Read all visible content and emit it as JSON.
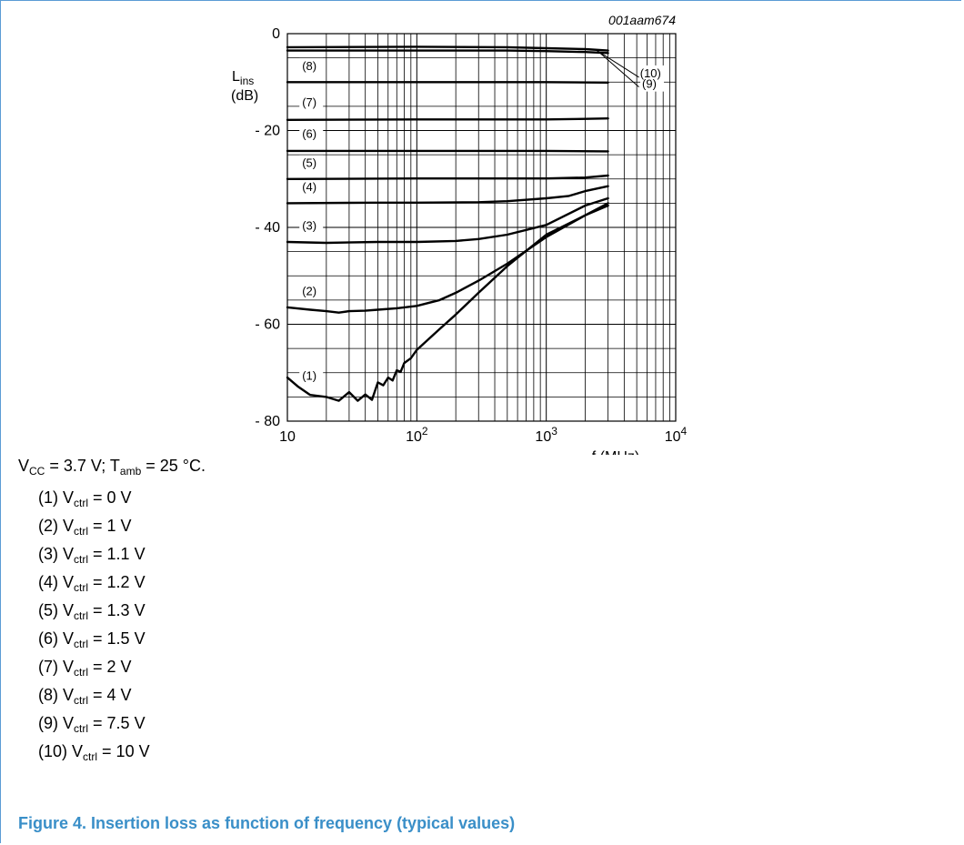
{
  "chart_data": {
    "type": "line",
    "figure_code": "001aam674",
    "ylabel_main": "L",
    "ylabel_sub": "ins",
    "ylabel_unit": "(dB)",
    "xlabel": "f (MHz)",
    "xscale": "log",
    "xlim": [
      10,
      10000
    ],
    "ylim": [
      -80,
      0
    ],
    "x_ticks": [
      {
        "value": 10,
        "base": "10",
        "exp": ""
      },
      {
        "value": 100,
        "base": "10",
        "exp": "2"
      },
      {
        "value": 1000,
        "base": "10",
        "exp": "3"
      },
      {
        "value": 10000,
        "base": "10",
        "exp": "4"
      }
    ],
    "y_ticks": [
      {
        "value": 0,
        "label": "0"
      },
      {
        "value": -20,
        "label": "- 20"
      },
      {
        "value": -40,
        "label": "- 40"
      },
      {
        "value": -60,
        "label": "- 60"
      },
      {
        "value": -80,
        "label": "- 80"
      }
    ],
    "grid": true,
    "series": [
      {
        "name": "(1)",
        "x": [
          10,
          12,
          15,
          20,
          25,
          30,
          35,
          40,
          45,
          50,
          55,
          60,
          65,
          70,
          75,
          80,
          90,
          100,
          150,
          200,
          300,
          500,
          1000,
          2000,
          3000
        ],
        "y": [
          -71,
          -72.8,
          -74.6,
          -75,
          -75.8,
          -74,
          -75.8,
          -74.5,
          -75.6,
          -72,
          -72.6,
          -71,
          -71.6,
          -69.5,
          -69.8,
          -68,
          -67,
          -65.3,
          -61,
          -58,
          -53.5,
          -48,
          -41.5,
          -37.5,
          -35.5
        ]
      },
      {
        "name": "(2)",
        "x": [
          10,
          15,
          20,
          25,
          30,
          40,
          50,
          70,
          100,
          150,
          200,
          300,
          500,
          1000,
          2000,
          3000
        ],
        "y": [
          -56.5,
          -57,
          -57.3,
          -57.6,
          -57.3,
          -57.2,
          -57,
          -56.7,
          -56.2,
          -55,
          -53.5,
          -51,
          -47.5,
          -42,
          -37.5,
          -35
        ]
      },
      {
        "name": "(3)",
        "x": [
          10,
          20,
          50,
          100,
          200,
          300,
          500,
          1000,
          2000,
          3000
        ],
        "y": [
          -43,
          -43.2,
          -43,
          -43,
          -42.8,
          -42.4,
          -41.5,
          -39.5,
          -35.5,
          -34
        ]
      },
      {
        "name": "(4)",
        "x": [
          10,
          50,
          100,
          300,
          500,
          1000,
          1500,
          2000,
          3000
        ],
        "y": [
          -35,
          -34.9,
          -34.9,
          -34.8,
          -34.6,
          -34,
          -33.5,
          -32.5,
          -31.5
        ]
      },
      {
        "name": "(5)",
        "x": [
          10,
          100,
          1000,
          2000,
          3000
        ],
        "y": [
          -30,
          -29.9,
          -29.9,
          -29.7,
          -29.3
        ]
      },
      {
        "name": "(6)",
        "x": [
          10,
          100,
          1000,
          3000
        ],
        "y": [
          -24.2,
          -24.2,
          -24.2,
          -24.3
        ]
      },
      {
        "name": "(7)",
        "x": [
          10,
          100,
          1000,
          2000,
          3000
        ],
        "y": [
          -17.8,
          -17.7,
          -17.7,
          -17.6,
          -17.5
        ]
      },
      {
        "name": "(8)",
        "x": [
          10,
          100,
          1000,
          3000
        ],
        "y": [
          -10,
          -10,
          -10,
          -10.1
        ]
      },
      {
        "name": "(9)",
        "x": [
          10,
          100,
          500,
          1000,
          2000,
          3000
        ],
        "y": [
          -3.5,
          -3.5,
          -3.5,
          -3.6,
          -3.8,
          -4
        ]
      },
      {
        "name": "(10)",
        "x": [
          10,
          100,
          500,
          1000,
          2000,
          3000
        ],
        "y": [
          -2.8,
          -2.7,
          -2.8,
          -3,
          -3.2,
          -3.5
        ]
      }
    ],
    "curve_labels": [
      {
        "text": "(1)",
        "x": 13,
        "y": -71.5
      },
      {
        "text": "(2)",
        "x": 13,
        "y": -54
      },
      {
        "text": "(3)",
        "x": 13,
        "y": -40.5
      },
      {
        "text": "(4)",
        "x": 13,
        "y": -32.5
      },
      {
        "text": "(5)",
        "x": 13,
        "y": -27.5
      },
      {
        "text": "(6)",
        "x": 13,
        "y": -21.5
      },
      {
        "text": "(7)",
        "x": 13,
        "y": -15
      },
      {
        "text": "(8)",
        "x": 13,
        "y": -7.5
      }
    ],
    "callouts": [
      {
        "text": "(10)",
        "from": [
          2400,
          -3.3
        ],
        "to": [
          5200,
          -9
        ],
        "label_x": 5300,
        "label_y": -9
      },
      {
        "text": "(9)",
        "from": [
          2600,
          -4
        ],
        "to": [
          5200,
          -11
        ],
        "label_x": 5500,
        "label_y": -11.2
      }
    ]
  },
  "conditions": {
    "vcc_label": "V",
    "vcc_sub": "CC",
    "vcc_value": " = 3.7 V; T",
    "tamb_sub": "amb",
    "tamb_value": " = 25 °C."
  },
  "legend_items": [
    {
      "id": "(1)",
      "v": "V",
      "sub": "ctrl",
      "value": " = 0 V"
    },
    {
      "id": "(2)",
      "v": "V",
      "sub": "ctrl",
      "value": " = 1 V"
    },
    {
      "id": "(3)",
      "v": "V",
      "sub": "ctrl",
      "value": " = 1.1 V"
    },
    {
      "id": "(4)",
      "v": "V",
      "sub": "ctrl",
      "value": " = 1.2 V"
    },
    {
      "id": "(5)",
      "v": "V",
      "sub": "ctrl",
      "value": " = 1.3 V"
    },
    {
      "id": "(6)",
      "v": "V",
      "sub": "ctrl",
      "value": " = 1.5 V"
    },
    {
      "id": "(7)",
      "v": "V",
      "sub": "ctrl",
      "value": " = 2 V"
    },
    {
      "id": "(8)",
      "v": "V",
      "sub": "ctrl",
      "value": " = 4 V"
    },
    {
      "id": "(9)",
      "v": "V",
      "sub": "ctrl",
      "value": " = 7.5 V"
    },
    {
      "id": "(10)",
      "v": "V",
      "sub": "ctrl",
      "value": " = 10 V"
    }
  ],
  "caption": "Figure 4.  Insertion loss as function of frequency (typical values)"
}
